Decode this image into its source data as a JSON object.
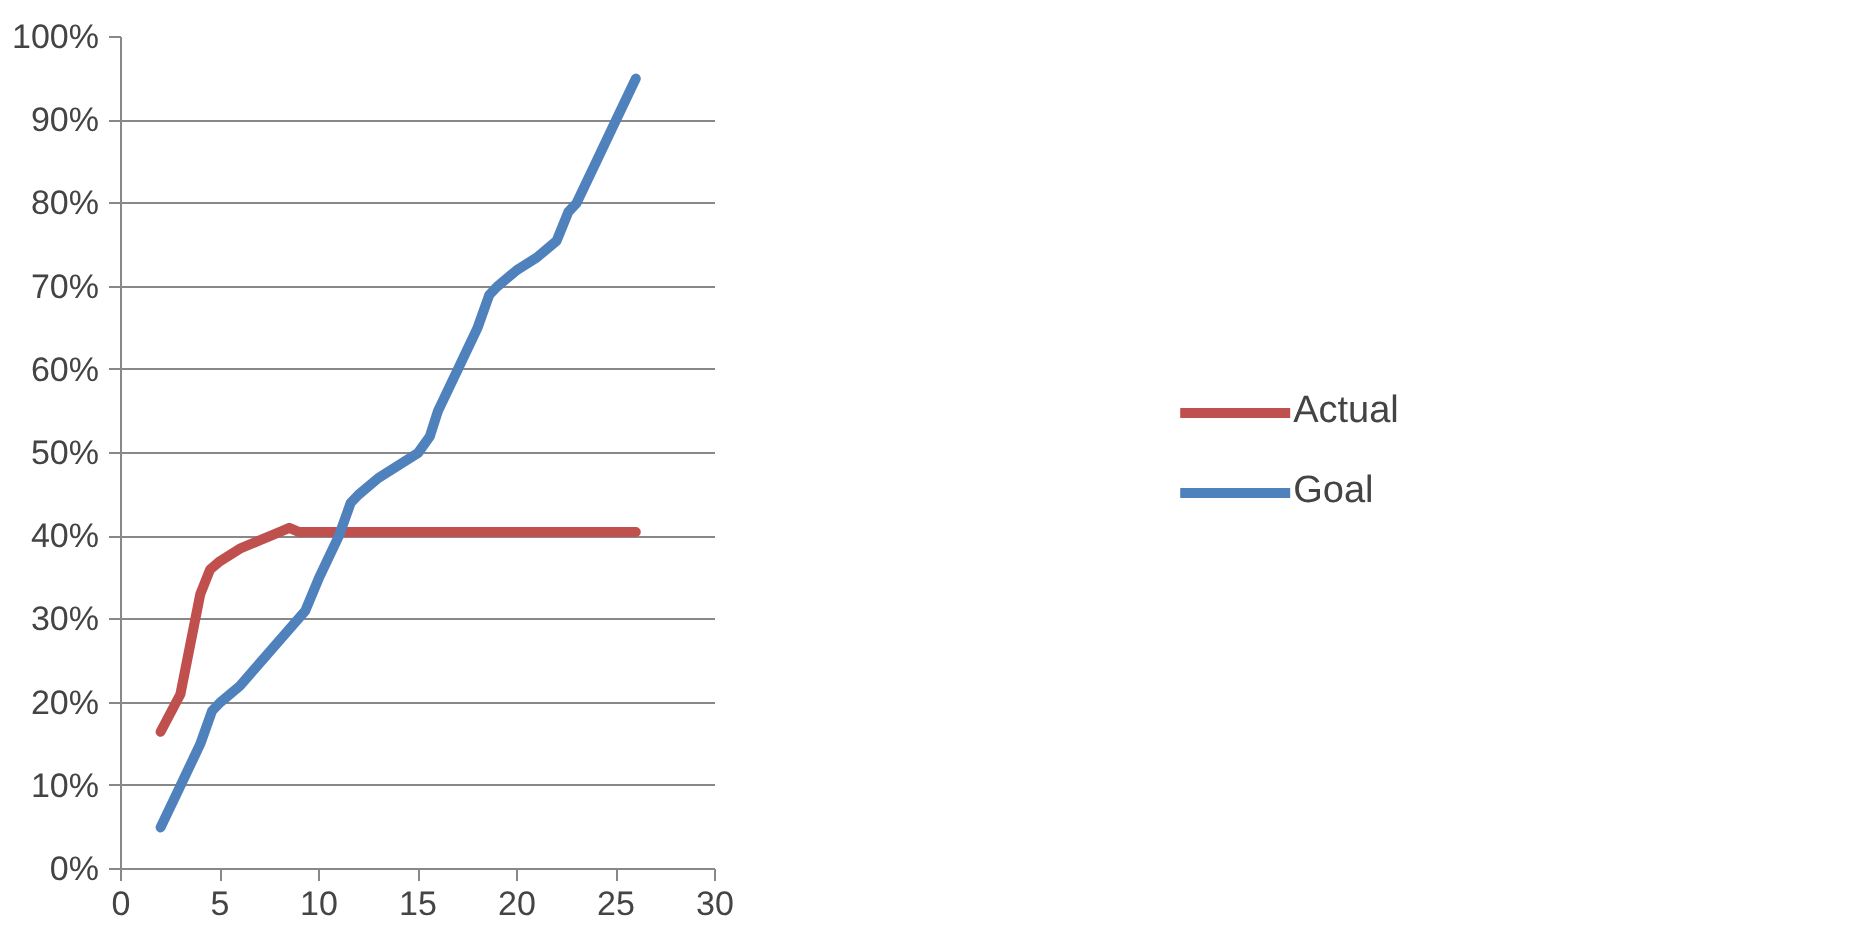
{
  "chart_data": {
    "type": "line",
    "series": [
      {
        "name": "Actual",
        "color": "#c0504d",
        "x": [
          2,
          3,
          4,
          4.5,
          5,
          6,
          7,
          8,
          8.5,
          9,
          26
        ],
        "values": [
          16.5,
          21,
          33,
          36,
          37,
          38.5,
          39.5,
          40.5,
          41,
          40.5,
          40.5
        ]
      },
      {
        "name": "Goal",
        "color": "#4f81bd",
        "x": [
          2,
          3,
          4,
          4.6,
          5,
          6,
          9.3,
          10,
          11,
          11.6,
          12,
          13,
          14,
          15,
          15.6,
          16,
          17,
          18,
          18.6,
          19,
          20,
          21,
          22,
          22.6,
          23,
          24,
          25,
          26
        ],
        "values": [
          5,
          10,
          15,
          19,
          20,
          22,
          31,
          35,
          40,
          44,
          45,
          47,
          48.5,
          50,
          52,
          55,
          60,
          65,
          69,
          70,
          72,
          73.5,
          75.5,
          79,
          80,
          85,
          90,
          95
        ]
      }
    ],
    "xlim": [
      0,
      30
    ],
    "xticks": [
      0,
      5,
      10,
      15,
      20,
      25,
      30
    ],
    "ylim": [
      0,
      100
    ],
    "yticks": [
      {
        "value": 0,
        "label": "0%"
      },
      {
        "value": 10,
        "label": "10%"
      },
      {
        "value": 20,
        "label": "20%"
      },
      {
        "value": 30,
        "label": "30%"
      },
      {
        "value": 40,
        "label": "40%"
      },
      {
        "value": 50,
        "label": "50%"
      },
      {
        "value": 60,
        "label": "60%"
      },
      {
        "value": 70,
        "label": "70%"
      },
      {
        "value": 80,
        "label": "80%"
      },
      {
        "value": 90,
        "label": "90%"
      },
      {
        "value": 100,
        "label": "100%"
      }
    ],
    "grid": "y",
    "legend": "right",
    "marker": "none",
    "line_style": "solid"
  }
}
